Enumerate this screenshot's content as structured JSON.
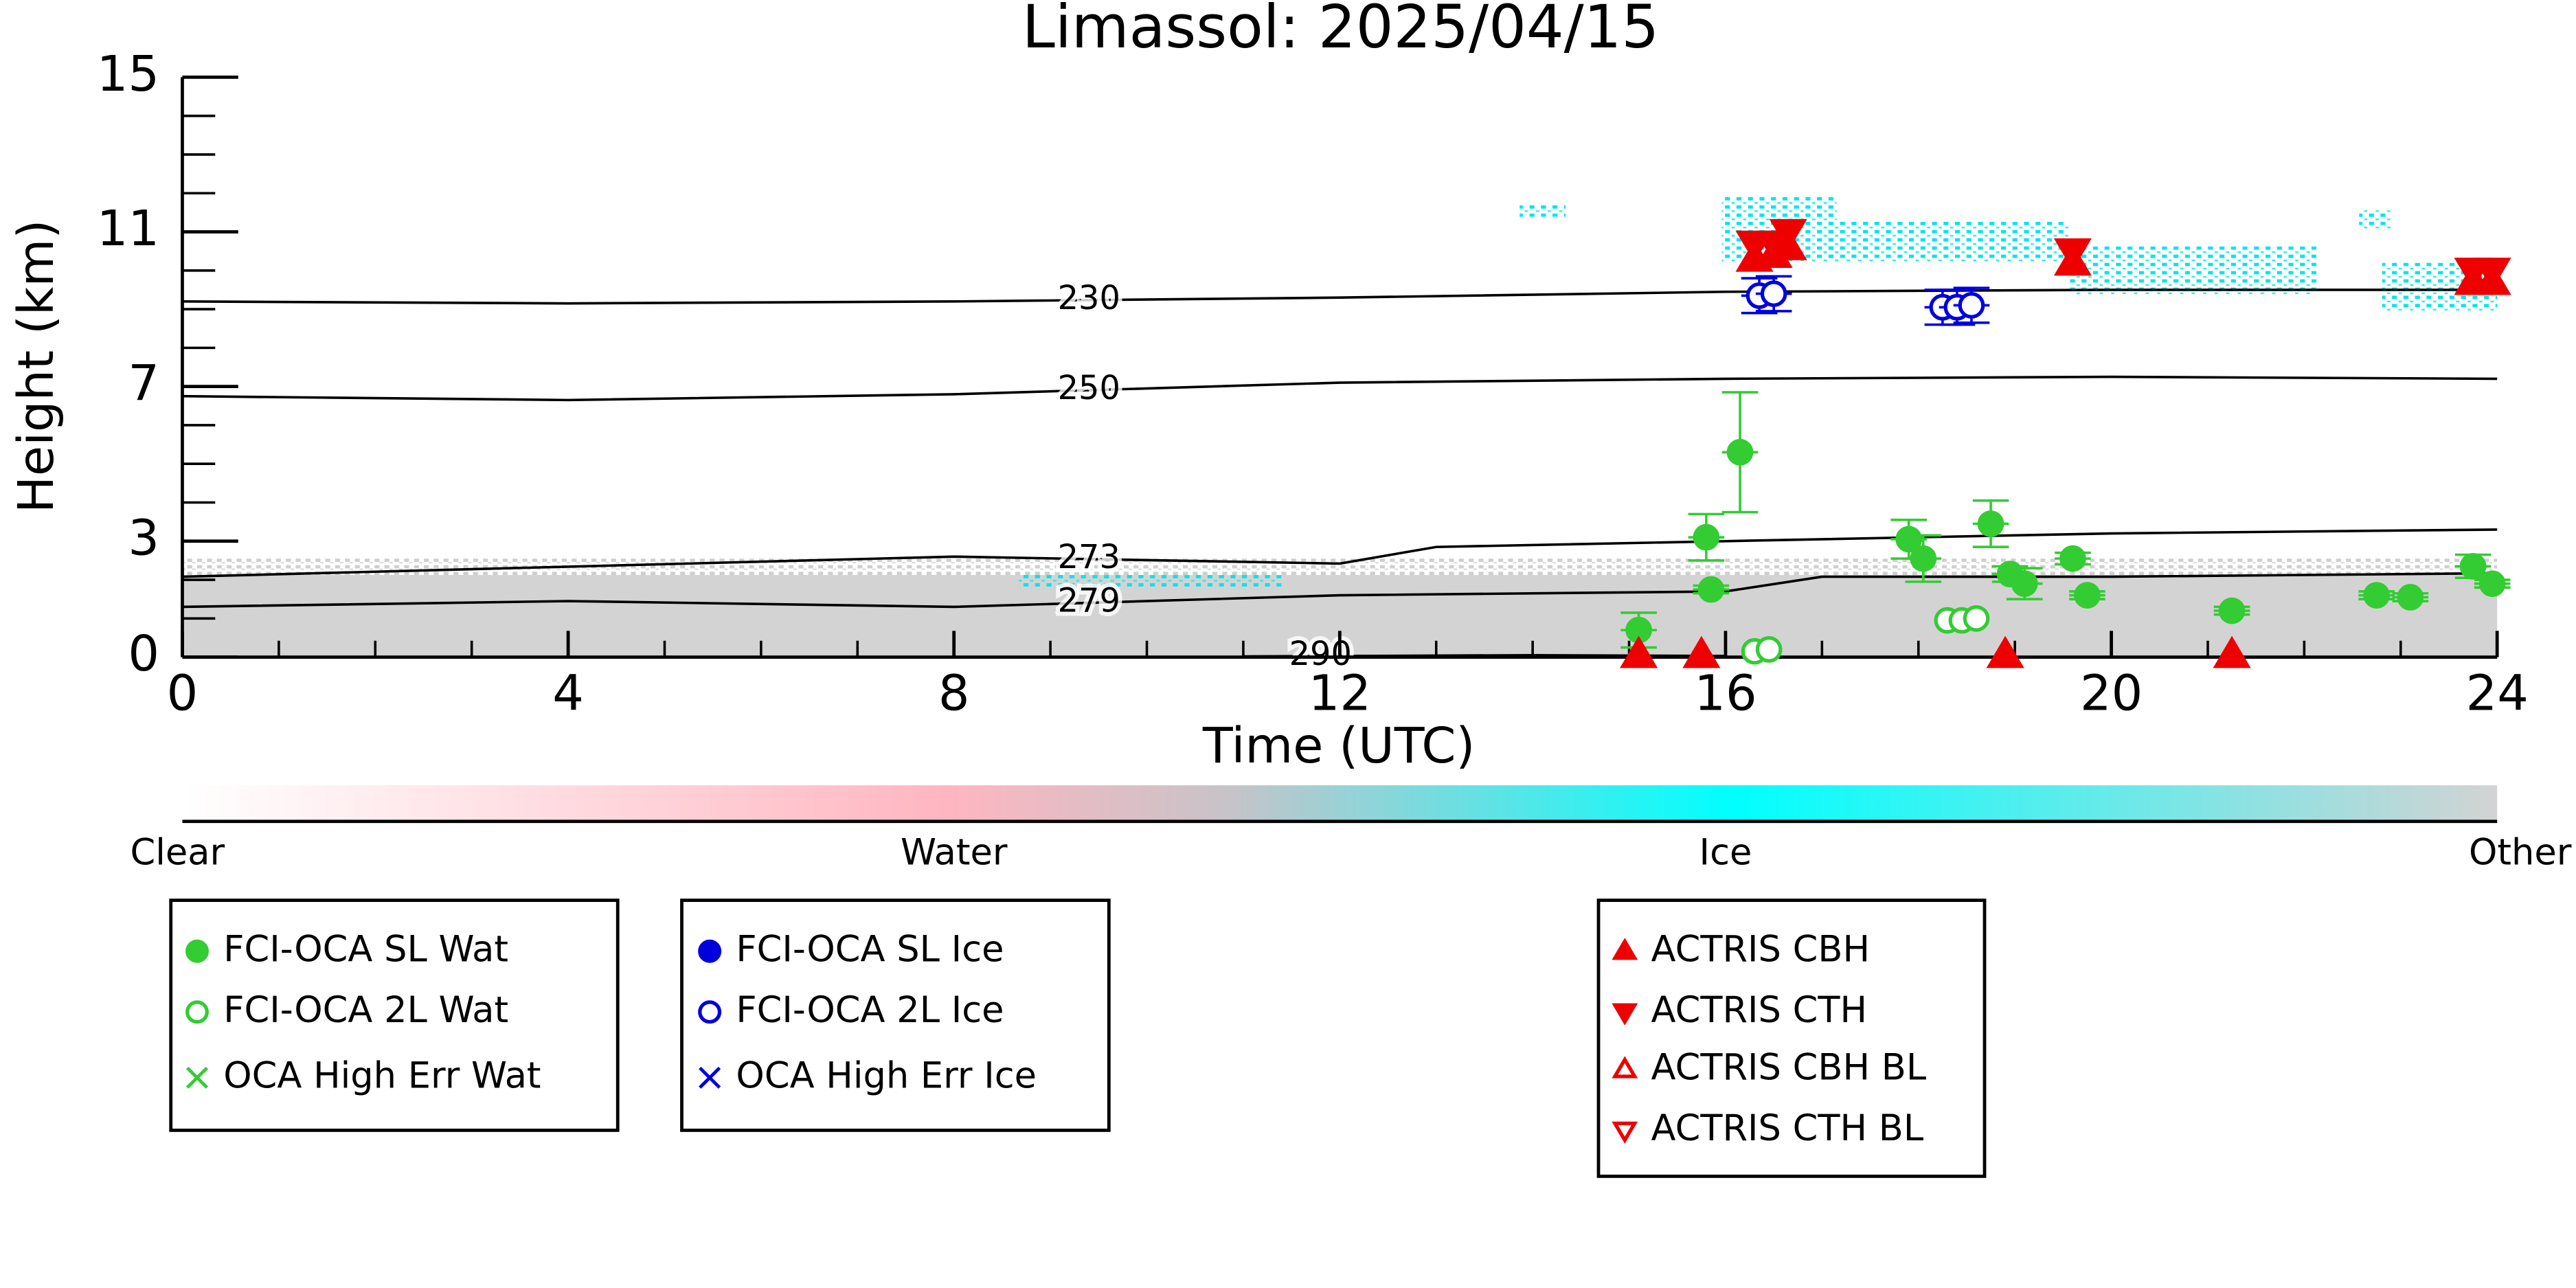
{
  "chart_data": {
    "type": "scatter",
    "title": "Limassol: 2025/04/15",
    "x_label": "Time (UTC)",
    "y_label": "Height (km)",
    "xlim": [
      0,
      24
    ],
    "xticks": [
      0,
      4,
      8,
      12,
      16,
      20,
      24
    ],
    "xminorticks": [
      1,
      2,
      3,
      5,
      6,
      7,
      9,
      10,
      11,
      13,
      14,
      15,
      17,
      18,
      19,
      21,
      22,
      23
    ],
    "ylim": [
      0,
      15
    ],
    "yticks": [
      0,
      3,
      7,
      11,
      15
    ],
    "yminorticks": [
      1,
      2,
      4,
      5,
      6,
      8,
      9,
      10,
      12,
      13,
      14
    ],
    "contours": [
      {
        "level": 230,
        "x": [
          0,
          4,
          8,
          12,
          16,
          20,
          24
        ],
        "values": [
          9.2,
          9.15,
          9.2,
          9.3,
          9.45,
          9.5,
          9.5
        ]
      },
      {
        "level": 250,
        "x": [
          0,
          4,
          8,
          12,
          16,
          20,
          24
        ],
        "values": [
          6.75,
          6.65,
          6.8,
          7.1,
          7.2,
          7.25,
          7.2
        ]
      },
      {
        "level": 273,
        "x": [
          0,
          4,
          8,
          12,
          13,
          16,
          20,
          24
        ],
        "values": [
          2.08,
          2.34,
          2.6,
          2.42,
          2.85,
          3.0,
          3.2,
          3.3
        ]
      },
      {
        "level": 279,
        "x": [
          0,
          4,
          8,
          12,
          16,
          17,
          20,
          24
        ],
        "values": [
          1.3,
          1.45,
          1.3,
          1.6,
          1.7,
          2.08,
          2.08,
          2.17
        ]
      },
      {
        "level": 290,
        "x": [
          11,
          14,
          16
        ],
        "values": [
          0.02,
          0.05,
          0.03
        ]
      }
    ],
    "series": [
      {
        "name": "FCI-OCA SL Wat",
        "color": "#33cc33",
        "marker": "filled-circle",
        "x": [
          15.1,
          15.8,
          15.85,
          16.15,
          17.9,
          18.05,
          18.75,
          18.95,
          19.1,
          19.6,
          19.75,
          21.25,
          22.75,
          23.1,
          23.75,
          23.95
        ],
        "values": [
          0.7,
          3.1,
          1.75,
          5.3,
          3.05,
          2.55,
          3.45,
          2.15,
          1.9,
          2.55,
          1.6,
          1.2,
          1.6,
          1.55,
          2.35,
          1.9
        ],
        "errors": [
          0.45,
          0.6,
          0.1,
          1.55,
          0.5,
          0.6,
          0.6,
          0.2,
          0.4,
          0.15,
          0.1,
          0.1,
          0.1,
          0.1,
          0.3,
          0.1
        ]
      },
      {
        "name": "FCI-OCA 2L Wat",
        "color": "#33cc33",
        "marker": "open-circle",
        "x": [
          16.3,
          16.45,
          18.3,
          18.45,
          18.6
        ],
        "values": [
          0.15,
          0.2,
          0.95,
          0.95,
          1.0
        ]
      },
      {
        "name": "OCA High Err Wat",
        "color": "#33cc33",
        "marker": "cross",
        "x": [],
        "values": []
      },
      {
        "name": "FCI-OCA SL Ice",
        "color": "#0000dd",
        "marker": "filled-circle",
        "x": [],
        "values": []
      },
      {
        "name": "FCI-OCA 2L Ice",
        "color": "#0000dd",
        "marker": "open-circle",
        "x": [
          16.35,
          16.5,
          18.25,
          18.4,
          18.55
        ],
        "values": [
          9.35,
          9.4,
          9.05,
          9.05,
          9.1
        ],
        "errors": [
          0.45,
          0.45,
          0.45,
          0.45,
          0.45
        ]
      },
      {
        "name": "OCA High Err Ice",
        "color": "#0000dd",
        "marker": "cross",
        "x": [],
        "values": []
      },
      {
        "name": "ACTRIS CBH",
        "color": "#ee0000",
        "marker": "filled-triangle-up",
        "x": [
          15.1,
          15.75,
          16.3,
          16.5,
          16.65,
          18.9,
          19.6,
          21.25,
          23.75,
          23.95
        ],
        "values": [
          0.05,
          0.05,
          10.3,
          10.4,
          10.6,
          0.05,
          10.2,
          0.05,
          9.7,
          9.7
        ]
      },
      {
        "name": "ACTRIS CTH",
        "color": "#ee0000",
        "marker": "filled-triangle-down",
        "x": [
          16.3,
          16.5,
          16.65,
          19.6,
          23.75,
          23.95
        ],
        "values": [
          10.7,
          10.7,
          11.0,
          10.5,
          10.0,
          10.0
        ]
      },
      {
        "name": "ACTRIS CBH BL",
        "color": "#ee0000",
        "marker": "open-triangle-up",
        "x": [],
        "values": []
      },
      {
        "name": "ACTRIS CTH BL",
        "color": "#ee0000",
        "marker": "open-triangle-down",
        "x": [],
        "values": []
      }
    ],
    "colorbar": {
      "labels": [
        "Clear",
        "Water",
        "Ice",
        "Other"
      ]
    }
  }
}
